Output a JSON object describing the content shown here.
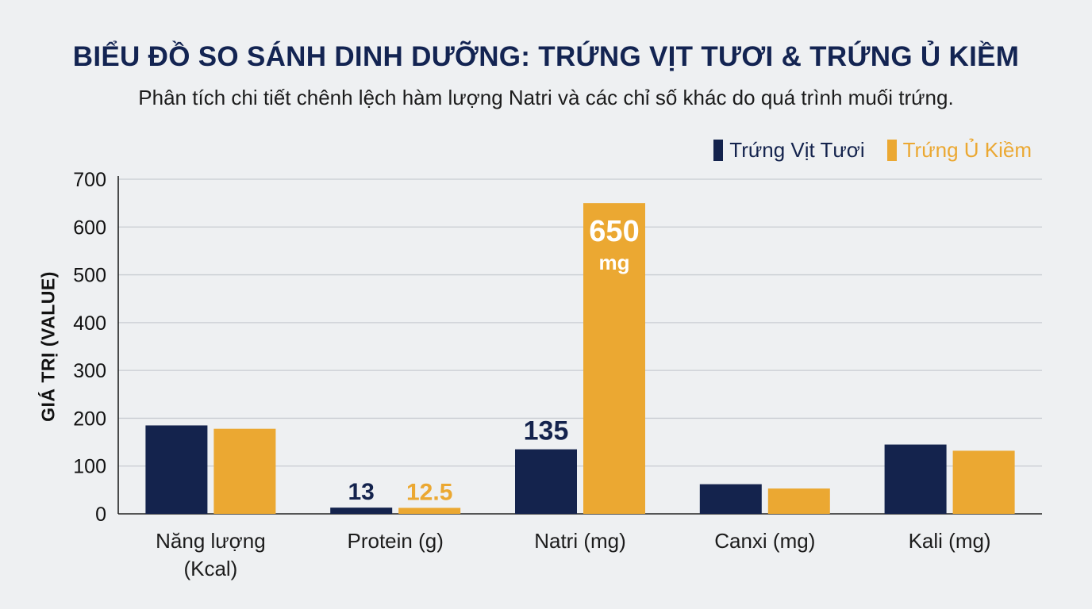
{
  "title": "BIỂU ĐỒ SO SÁNH DINH DƯỠNG: TRỨNG VỊT TƯƠI & TRỨNG Ủ KIỀM",
  "subtitle": "Phân tích chi tiết chênh lệch hàm lượng Natri và các chỉ số khác do quá trình muối trứng.",
  "colors": {
    "fresh": "#14234d",
    "alkaline": "#eba832",
    "grid": "#c8ccd1",
    "axis": "#222222",
    "background": "#eef0f2"
  },
  "chart_data": {
    "type": "bar",
    "title": "BIỂU ĐỒ SO SÁNH DINH DƯỠNG: TRỨNG VỊT TƯƠI & TRỨNG Ủ KIỀM",
    "subtitle": "Phân tích chi tiết chênh lệch hàm lượng Natri và các chỉ số khác do quá trình muối trứng.",
    "xlabel": "",
    "ylabel": "GIÁ TRỊ (VALUE)",
    "ylim": [
      0,
      700
    ],
    "yticks": [
      0,
      100,
      200,
      300,
      400,
      500,
      600,
      700
    ],
    "grid": true,
    "legend_position": "top-right",
    "categories": [
      [
        "Năng lượng",
        "(Kcal)"
      ],
      [
        "Protein (g)"
      ],
      [
        "Natri (mg)"
      ],
      [
        "Canxi (mg)"
      ],
      [
        "Kali (mg)"
      ]
    ],
    "series": [
      {
        "name": "Trứng Vịt Tươi",
        "color": "#14234d",
        "values": [
          185,
          13,
          135,
          62,
          145
        ]
      },
      {
        "name": "Trứng Ủ Kiềm",
        "color": "#eba832",
        "values": [
          178,
          12.5,
          650,
          53,
          132
        ]
      }
    ],
    "data_labels": [
      {
        "series": 0,
        "category": 1,
        "text": "13"
      },
      {
        "series": 1,
        "category": 1,
        "text": "12.5"
      },
      {
        "series": 0,
        "category": 2,
        "text": "135"
      },
      {
        "series": 1,
        "category": 2,
        "text": [
          "650",
          "mg"
        ]
      }
    ]
  }
}
